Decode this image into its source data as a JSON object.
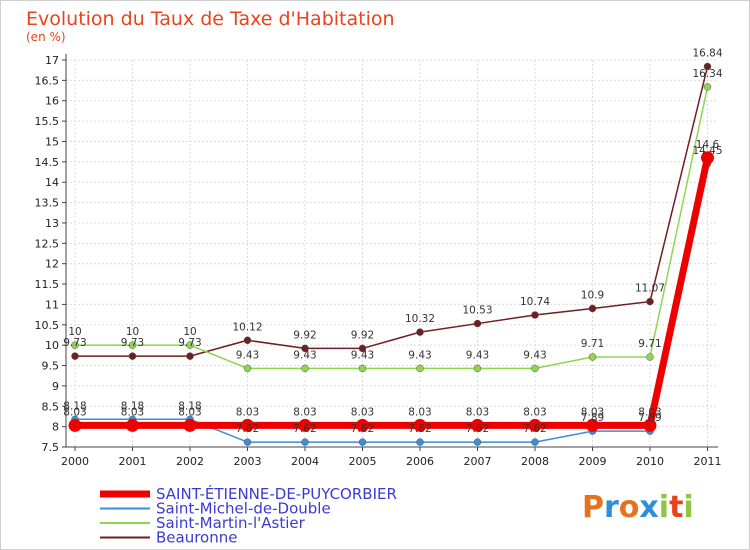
{
  "chart_data": {
    "type": "line",
    "title": "Evolution du Taux de Taxe d'Habitation",
    "subtitle": "(en %)",
    "categories": [
      "2000",
      "2001",
      "2002",
      "2003",
      "2004",
      "2005",
      "2006",
      "2007",
      "2008",
      "2009",
      "2010",
      "2011"
    ],
    "ylim": [
      7.5,
      17
    ],
    "yticks": [
      "7.5",
      "8",
      "8.5",
      "9",
      "9.5",
      "10",
      "10.5",
      "11",
      "11.5",
      "12",
      "12.5",
      "13",
      "13.5",
      "14",
      "14.5",
      "15",
      "15.5",
      "16",
      "16.5",
      "17"
    ],
    "grid": true,
    "legend_position": "bottom-left",
    "series": [
      {
        "name": "SAINT-ÉTIENNE-DE-PUYCORBIER",
        "color": "#ee0000",
        "labels": [
          "8.03",
          "8.03",
          "8.03",
          "8.03",
          "8.03",
          "8.03",
          "8.03",
          "8.03",
          "8.03",
          "8.03",
          "8.03",
          "14.6"
        ],
        "values": [
          8.03,
          8.03,
          8.03,
          8.03,
          8.03,
          8.03,
          8.03,
          8.03,
          8.03,
          8.03,
          8.03,
          14.6
        ]
      },
      {
        "name": "Saint-Michel-de-Double",
        "color": "#3b8fd6",
        "labels": [
          "8.18",
          "8.18",
          "8.18",
          "7.62",
          "7.62",
          "7.62",
          "7.62",
          "7.62",
          "7.62",
          "7.89",
          "7.89",
          "14.45"
        ],
        "values": [
          8.18,
          8.18,
          8.18,
          7.62,
          7.62,
          7.62,
          7.62,
          7.62,
          7.62,
          7.89,
          7.89,
          14.45
        ]
      },
      {
        "name": "Saint-Martin-l'Astier",
        "color": "#8fd64f",
        "labels": [
          "10",
          "10",
          "10",
          "9.43",
          "9.43",
          "9.43",
          "9.43",
          "9.43",
          "9.43",
          "9.71",
          "9.71",
          "16.34"
        ],
        "values": [
          10,
          10,
          10,
          9.43,
          9.43,
          9.43,
          9.43,
          9.43,
          9.43,
          9.71,
          9.71,
          16.34
        ]
      },
      {
        "name": "Beauronne",
        "color": "#6e1f1f",
        "labels": [
          "9.73",
          "9.73",
          "9.73",
          "10.12",
          "9.92",
          "9.92",
          "10.32",
          "10.53",
          "10.74",
          "10.9",
          "11.07",
          "16.84"
        ],
        "values": [
          9.73,
          9.73,
          9.73,
          10.12,
          9.92,
          9.92,
          10.32,
          10.53,
          10.74,
          10.9,
          11.07,
          16.84
        ]
      }
    ]
  },
  "logo": {
    "text": "Proxiti"
  }
}
